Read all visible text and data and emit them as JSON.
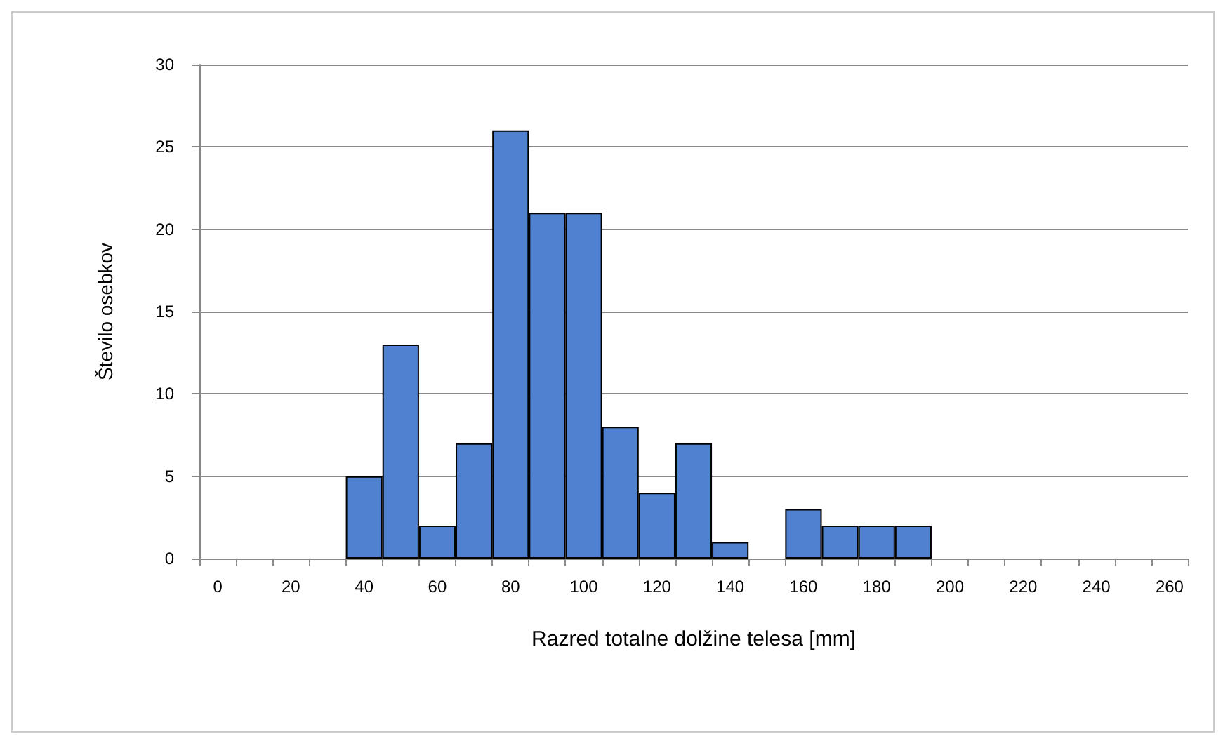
{
  "chart_data": {
    "type": "bar",
    "xlabel": "Razred totalne dolžine telesa [mm]",
    "ylabel": "Število osebkov",
    "categories": [
      "0",
      null,
      "20",
      null,
      "40",
      null,
      "60",
      null,
      "80",
      null,
      "100",
      null,
      "120",
      null,
      "140",
      null,
      "160",
      null,
      "180",
      null,
      "200",
      null,
      "220",
      null,
      "240",
      null,
      "260"
    ],
    "values": [
      0,
      0,
      0,
      0,
      5,
      13,
      2,
      7,
      26,
      21,
      21,
      8,
      4,
      7,
      1,
      0,
      3,
      2,
      2,
      2,
      0,
      0,
      0,
      0,
      0,
      0,
      0
    ],
    "color": "#4f81d0",
    "ylim": [
      0,
      30
    ],
    "yticks": [
      0,
      5,
      10,
      15,
      20,
      25,
      30
    ],
    "grid": "y"
  }
}
